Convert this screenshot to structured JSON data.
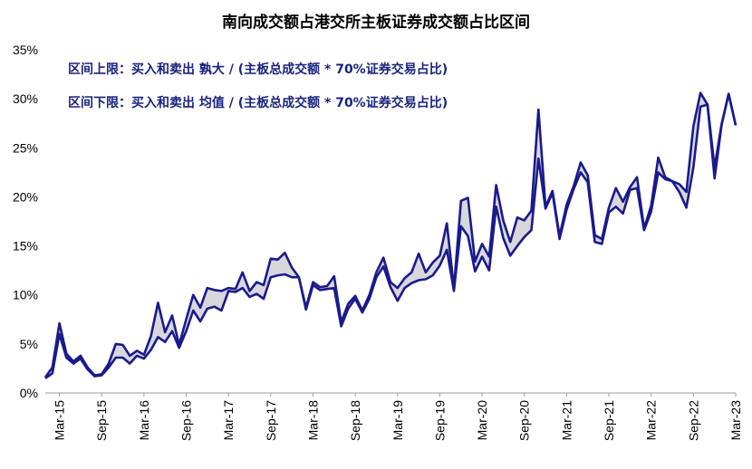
{
  "chart_data": {
    "type": "area",
    "title": "南向成交额占港交所主板证券成交额占比区间",
    "xlabel": "",
    "ylabel": "",
    "ylim": [
      0,
      35
    ],
    "yticks": [
      "0%",
      "5%",
      "10%",
      "15%",
      "20%",
      "25%",
      "30%",
      "35%"
    ],
    "xticks": [
      "Mar-15",
      "Sep-15",
      "Mar-16",
      "Sep-16",
      "Mar-17",
      "Sep-17",
      "Mar-18",
      "Sep-18",
      "Mar-19",
      "Sep-19",
      "Mar-20",
      "Sep-20",
      "Mar-21",
      "Sep-21",
      "Mar-22",
      "Sep-22",
      "Mar-23"
    ],
    "annotations": [
      "区间上限：买入和卖出 孰大 / (主板总成交额 * 70%证券交易占比)",
      "区间下限：买入和卖出 均值 / (主板总成交额 * 70%证券交易占比)"
    ],
    "grid": false,
    "x": [
      "Jan-15",
      "Feb-15",
      "Mar-15",
      "Apr-15",
      "May-15",
      "Jun-15",
      "Jul-15",
      "Aug-15",
      "Sep-15",
      "Oct-15",
      "Nov-15",
      "Dec-15",
      "Jan-16",
      "Feb-16",
      "Mar-16",
      "Apr-16",
      "May-16",
      "Jun-16",
      "Jul-16",
      "Aug-16",
      "Sep-16",
      "Oct-16",
      "Nov-16",
      "Dec-16",
      "Jan-17",
      "Feb-17",
      "Mar-17",
      "Apr-17",
      "May-17",
      "Jun-17",
      "Jul-17",
      "Aug-17",
      "Sep-17",
      "Oct-17",
      "Nov-17",
      "Dec-17",
      "Jan-18",
      "Feb-18",
      "Mar-18",
      "Apr-18",
      "May-18",
      "Jun-18",
      "Jul-18",
      "Aug-18",
      "Sep-18",
      "Oct-18",
      "Nov-18",
      "Dec-18",
      "Jan-19",
      "Feb-19",
      "Mar-19",
      "Apr-19",
      "May-19",
      "Jun-19",
      "Jul-19",
      "Aug-19",
      "Sep-19",
      "Oct-19",
      "Nov-19",
      "Dec-19",
      "Jan-20",
      "Feb-20",
      "Mar-20",
      "Apr-20",
      "May-20",
      "Jun-20",
      "Jul-20",
      "Aug-20",
      "Sep-20",
      "Oct-20",
      "Nov-20",
      "Dec-20",
      "Jan-21",
      "Feb-21",
      "Mar-21",
      "Apr-21",
      "May-21",
      "Jun-21",
      "Jul-21",
      "Aug-21",
      "Sep-21",
      "Oct-21",
      "Nov-21",
      "Dec-21",
      "Jan-22",
      "Feb-22",
      "Mar-22",
      "Apr-22",
      "May-22",
      "Jun-22",
      "Jul-22",
      "Aug-22",
      "Sep-22",
      "Oct-22",
      "Nov-22",
      "Dec-22",
      "Jan-23",
      "Feb-23",
      "Mar-23"
    ],
    "series": [
      {
        "role": "upper",
        "values": [
          1.6,
          2.6,
          7.1,
          4.0,
          3.2,
          3.8,
          2.6,
          1.8,
          1.9,
          3.0,
          5.0,
          4.9,
          3.8,
          4.3,
          3.9,
          5.8,
          9.2,
          6.2,
          7.9,
          4.9,
          7.5,
          10.0,
          8.7,
          10.7,
          10.5,
          10.4,
          10.7,
          10.6,
          12.3,
          10.4,
          11.3,
          11.0,
          13.7,
          13.6,
          14.3,
          12.8,
          11.8,
          8.7,
          11.3,
          10.8,
          10.9,
          11.9,
          7.2,
          9.1,
          9.9,
          8.4,
          10.0,
          12.3,
          13.8,
          11.3,
          10.7,
          11.7,
          12.3,
          14.2,
          12.3,
          13.3,
          14.0,
          17.3,
          10.7,
          19.6,
          19.9,
          13.4,
          15.2,
          13.9,
          21.2,
          17.6,
          15.4,
          17.9,
          17.6,
          18.6,
          28.9,
          19.0,
          20.6,
          16.0,
          19.2,
          21.1,
          23.5,
          22.2,
          16.1,
          15.7,
          18.9,
          20.9,
          19.5,
          21.0,
          22.0,
          16.8,
          19.1,
          24.0,
          22.0,
          21.6,
          21.3,
          20.5,
          27.2,
          30.6,
          29.4,
          23.0,
          27.4,
          30.5,
          27.3
        ],
        "color": "#1a1a8c"
      },
      {
        "role": "lower",
        "values": [
          1.5,
          2.0,
          6.0,
          3.6,
          3.0,
          3.5,
          2.4,
          1.7,
          1.8,
          2.6,
          3.6,
          3.6,
          3.0,
          3.8,
          3.5,
          4.4,
          5.7,
          5.2,
          6.3,
          4.6,
          6.3,
          8.4,
          7.3,
          8.6,
          8.8,
          8.4,
          10.4,
          10.3,
          10.7,
          9.8,
          10.1,
          9.6,
          11.8,
          12.0,
          12.1,
          11.8,
          11.8,
          8.5,
          11.0,
          10.5,
          10.6,
          10.7,
          6.8,
          8.6,
          9.6,
          8.2,
          9.6,
          11.8,
          12.9,
          10.8,
          9.4,
          10.7,
          11.2,
          11.5,
          11.6,
          12.0,
          13.0,
          14.6,
          10.4,
          17.0,
          16.0,
          12.4,
          13.9,
          12.5,
          19.0,
          15.8,
          14.0,
          15.0,
          15.9,
          16.6,
          23.9,
          18.8,
          20.4,
          15.7,
          18.7,
          20.8,
          22.5,
          21.5,
          15.4,
          15.2,
          18.4,
          19.0,
          18.3,
          20.7,
          20.9,
          16.6,
          18.5,
          22.5,
          21.8,
          21.6,
          20.5,
          18.9,
          23.0,
          29.2,
          29.4,
          21.9,
          27.3,
          30.5,
          27.3
        ],
        "color": "#1a1a8c"
      }
    ],
    "fill_color": "#d8d8dc"
  }
}
